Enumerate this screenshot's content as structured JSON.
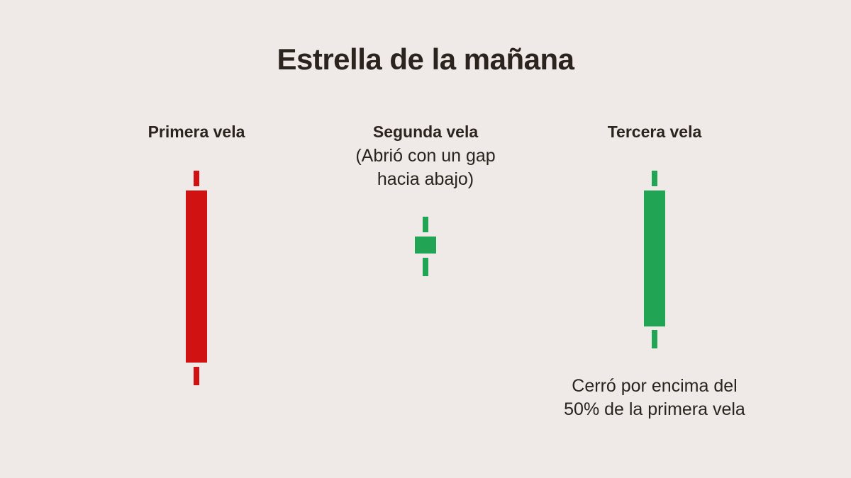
{
  "title": "Estrella de la mañana",
  "candles": [
    {
      "label": "Primera vela",
      "sublabel": "",
      "direction": "bearish",
      "color": "#d11212"
    },
    {
      "label": "Segunda vela",
      "sublabel": "(Abrió con un gap\nhacia abajo)",
      "direction": "bullish",
      "color": "#21a453"
    },
    {
      "label": "Tercera vela",
      "sublabel": "",
      "direction": "bullish",
      "color": "#21a453"
    }
  ],
  "note": "Cerró por encima del\n50% de la primera vela",
  "colors": {
    "background": "#efeae7",
    "text": "#2b231d",
    "bearish": "#d11212",
    "bullish": "#21a453"
  }
}
